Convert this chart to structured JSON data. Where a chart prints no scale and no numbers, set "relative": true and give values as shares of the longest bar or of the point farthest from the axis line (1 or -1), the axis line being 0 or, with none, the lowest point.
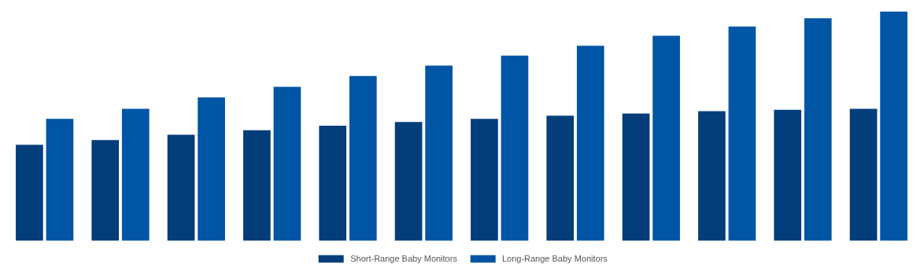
{
  "chart_data": {
    "type": "bar",
    "relative": true,
    "categories": [
      null,
      null,
      null,
      null,
      null,
      null,
      null,
      null,
      null,
      null,
      null,
      null
    ],
    "series": [
      {
        "name": "Short-Range Baby Monitors",
        "color": "#033d7a",
        "values": [
          0.419,
          0.439,
          0.462,
          0.482,
          0.502,
          0.518,
          0.532,
          0.545,
          0.555,
          0.565,
          0.571,
          0.575
        ]
      },
      {
        "name": "Long-Range Baby Monitors",
        "color": "#0055a5",
        "values": [
          0.532,
          0.575,
          0.625,
          0.671,
          0.718,
          0.764,
          0.807,
          0.85,
          0.894,
          0.934,
          0.97,
          1.0
        ]
      }
    ],
    "legend": "bottom"
  }
}
